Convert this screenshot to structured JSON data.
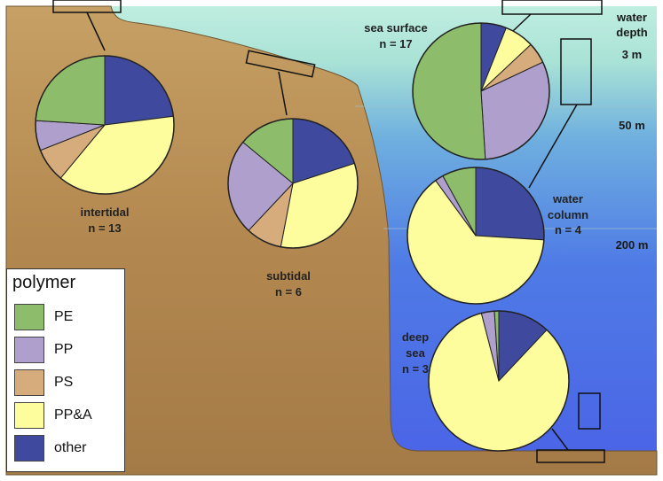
{
  "depth_axis": {
    "title_line1": "water",
    "title_line2": "depth",
    "ticks": [
      "3 m",
      "50 m",
      "200 m"
    ]
  },
  "legend": {
    "title": "polymer",
    "items": [
      {
        "label": "PE",
        "color": "#8dbd6b"
      },
      {
        "label": "PP",
        "color": "#ae9fcc"
      },
      {
        "label": "PS",
        "color": "#d6ac7c"
      },
      {
        "label": "PP&A",
        "color": "#fdfd9e"
      },
      {
        "label": "other",
        "color": "#3f4a9f"
      }
    ]
  },
  "chart_data": {
    "type": "pie",
    "polymers": [
      "PE",
      "PP",
      "PS",
      "PP&A",
      "other"
    ],
    "colors": {
      "PE": "#8dbd6b",
      "PP": "#ae9fcc",
      "PS": "#d6ac7c",
      "PP&A": "#fdfd9e",
      "other": "#3f4a9f"
    },
    "pies": [
      {
        "id": "intertidal",
        "label": "intertidal",
        "n_label": "n = 13",
        "slices": [
          {
            "polymer": "other",
            "value": 23
          },
          {
            "polymer": "PP&A",
            "value": 38
          },
          {
            "polymer": "PS",
            "value": 8
          },
          {
            "polymer": "PP",
            "value": 7
          },
          {
            "polymer": "PE",
            "value": 24
          }
        ]
      },
      {
        "id": "subtidal",
        "label": "subtidal",
        "n_label": "n = 6",
        "slices": [
          {
            "polymer": "other",
            "value": 20
          },
          {
            "polymer": "PP&A",
            "value": 33
          },
          {
            "polymer": "PS",
            "value": 9
          },
          {
            "polymer": "PP",
            "value": 24
          },
          {
            "polymer": "PE",
            "value": 14
          }
        ]
      },
      {
        "id": "sea-surface",
        "label": "sea surface",
        "n_label": "n = 17",
        "slices": [
          {
            "polymer": "other",
            "value": 6
          },
          {
            "polymer": "PP&A",
            "value": 7
          },
          {
            "polymer": "PS",
            "value": 5
          },
          {
            "polymer": "PP",
            "value": 31
          },
          {
            "polymer": "PE",
            "value": 51
          }
        ]
      },
      {
        "id": "water-column",
        "label": "water column",
        "n_label": "n = 4",
        "slices": [
          {
            "polymer": "other",
            "value": 26
          },
          {
            "polymer": "PP&A",
            "value": 64
          },
          {
            "polymer": "PS",
            "value": 0
          },
          {
            "polymer": "PP",
            "value": 2
          },
          {
            "polymer": "PE",
            "value": 8
          }
        ]
      },
      {
        "id": "deep-sea",
        "label": "deep sea",
        "n_label": "n = 3",
        "slices": [
          {
            "polymer": "other",
            "value": 12
          },
          {
            "polymer": "PP&A",
            "value": 84
          },
          {
            "polymer": "PS",
            "value": 0
          },
          {
            "polymer": "PP",
            "value": 3
          },
          {
            "polymer": "PE",
            "value": 1
          }
        ]
      }
    ]
  }
}
